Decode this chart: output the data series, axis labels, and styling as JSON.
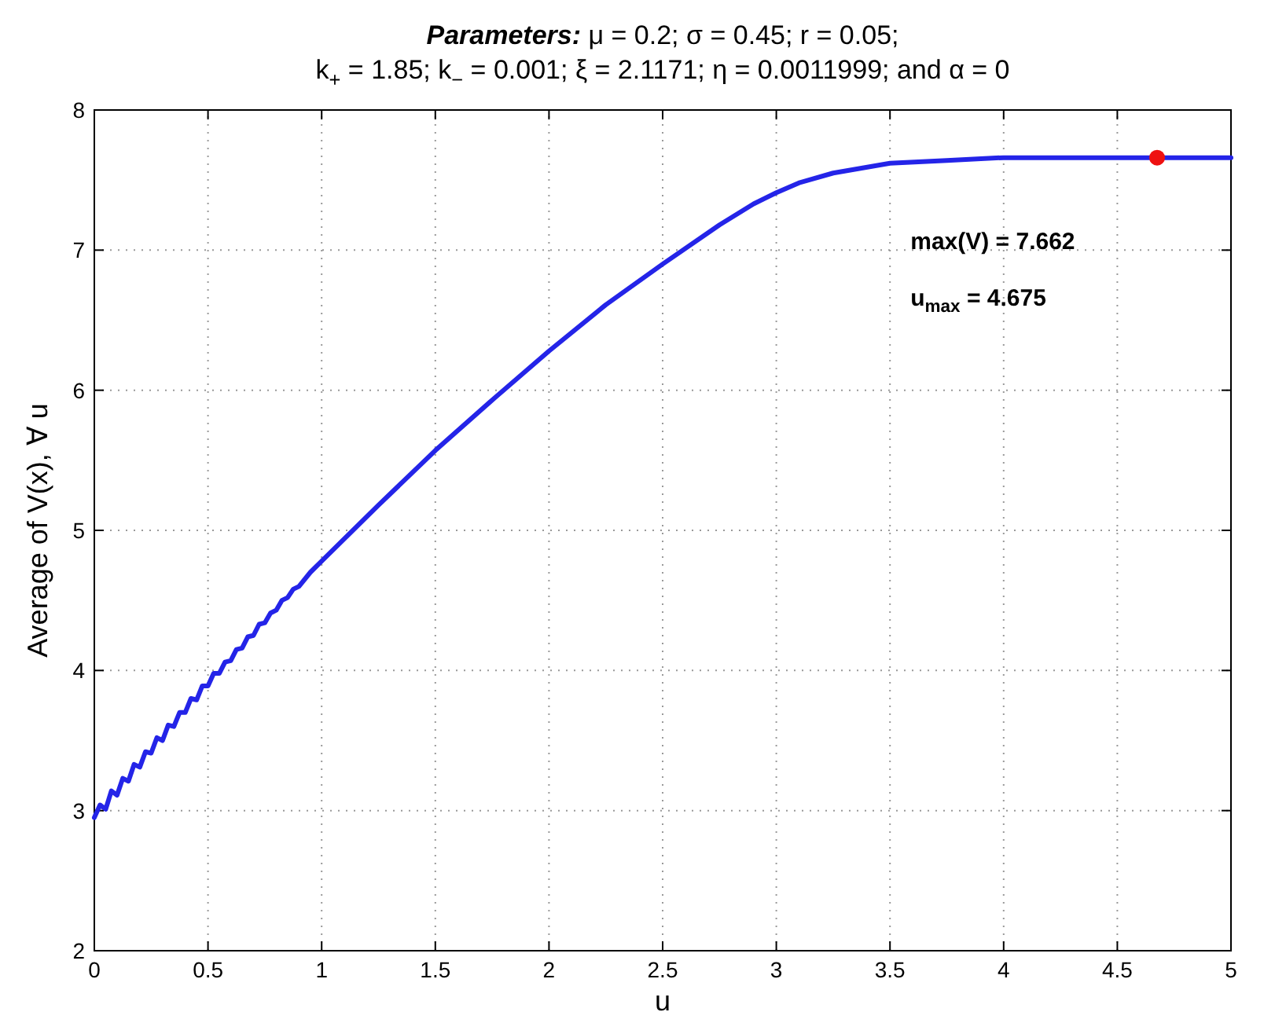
{
  "chart_data": {
    "type": "line",
    "title": "Parameters: μ = 0.2; σ = 0.45; r = 0.05;",
    "subtitle": "k$_{+}$ = 1.85; k$_{−}$ = 0.001; ξ = 2.1171; η = 0.0011999; and α = 0",
    "xlabel": "u",
    "ylabel": "Average of V(x), ∀ u",
    "xlim": [
      0,
      5
    ],
    "ylim": [
      2,
      8
    ],
    "xticks": [
      0,
      0.5,
      1,
      1.5,
      2,
      2.5,
      3,
      3.5,
      4,
      4.5,
      5
    ],
    "yticks": [
      2,
      3,
      4,
      5,
      6,
      7,
      8
    ],
    "grid": true,
    "line_style": "solid",
    "marker": "none",
    "annotations": [
      "max(V) = 7.662",
      "u$_{max}$ = 4.675"
    ],
    "series": [
      {
        "color": "#2424e8",
        "x": [
          0,
          0.025,
          0.05,
          0.075,
          0.1,
          0.125,
          0.15,
          0.175,
          0.2,
          0.225,
          0.25,
          0.275,
          0.3,
          0.325,
          0.35,
          0.375,
          0.4,
          0.425,
          0.45,
          0.475,
          0.5,
          0.525,
          0.55,
          0.575,
          0.6,
          0.625,
          0.65,
          0.675,
          0.7,
          0.725,
          0.75,
          0.775,
          0.8,
          0.825,
          0.85,
          0.875,
          0.9,
          0.95,
          1.0,
          1.25,
          1.5,
          1.75,
          2,
          2.25,
          2.5,
          2.75,
          2.9,
          3,
          3.1,
          3.25,
          3.5,
          3.75,
          4,
          4.5,
          5
        ],
        "values": [
          2.95,
          3.04,
          3.01,
          3.14,
          3.11,
          3.23,
          3.21,
          3.33,
          3.31,
          3.42,
          3.41,
          3.52,
          3.5,
          3.61,
          3.6,
          3.7,
          3.7,
          3.8,
          3.79,
          3.89,
          3.89,
          3.98,
          3.98,
          4.06,
          4.07,
          4.15,
          4.16,
          4.24,
          4.25,
          4.33,
          4.34,
          4.41,
          4.43,
          4.5,
          4.52,
          4.58,
          4.6,
          4.7,
          4.78,
          5.18,
          5.57,
          5.93,
          6.28,
          6.61,
          6.9,
          7.18,
          7.33,
          7.41,
          7.48,
          7.55,
          7.62,
          7.64,
          7.66,
          7.66,
          7.66
        ]
      },
      {
        "type": "scatter",
        "color": "#ee1111",
        "marker": "circle",
        "x": [
          4.675
        ],
        "values": [
          7.66
        ]
      }
    ]
  }
}
